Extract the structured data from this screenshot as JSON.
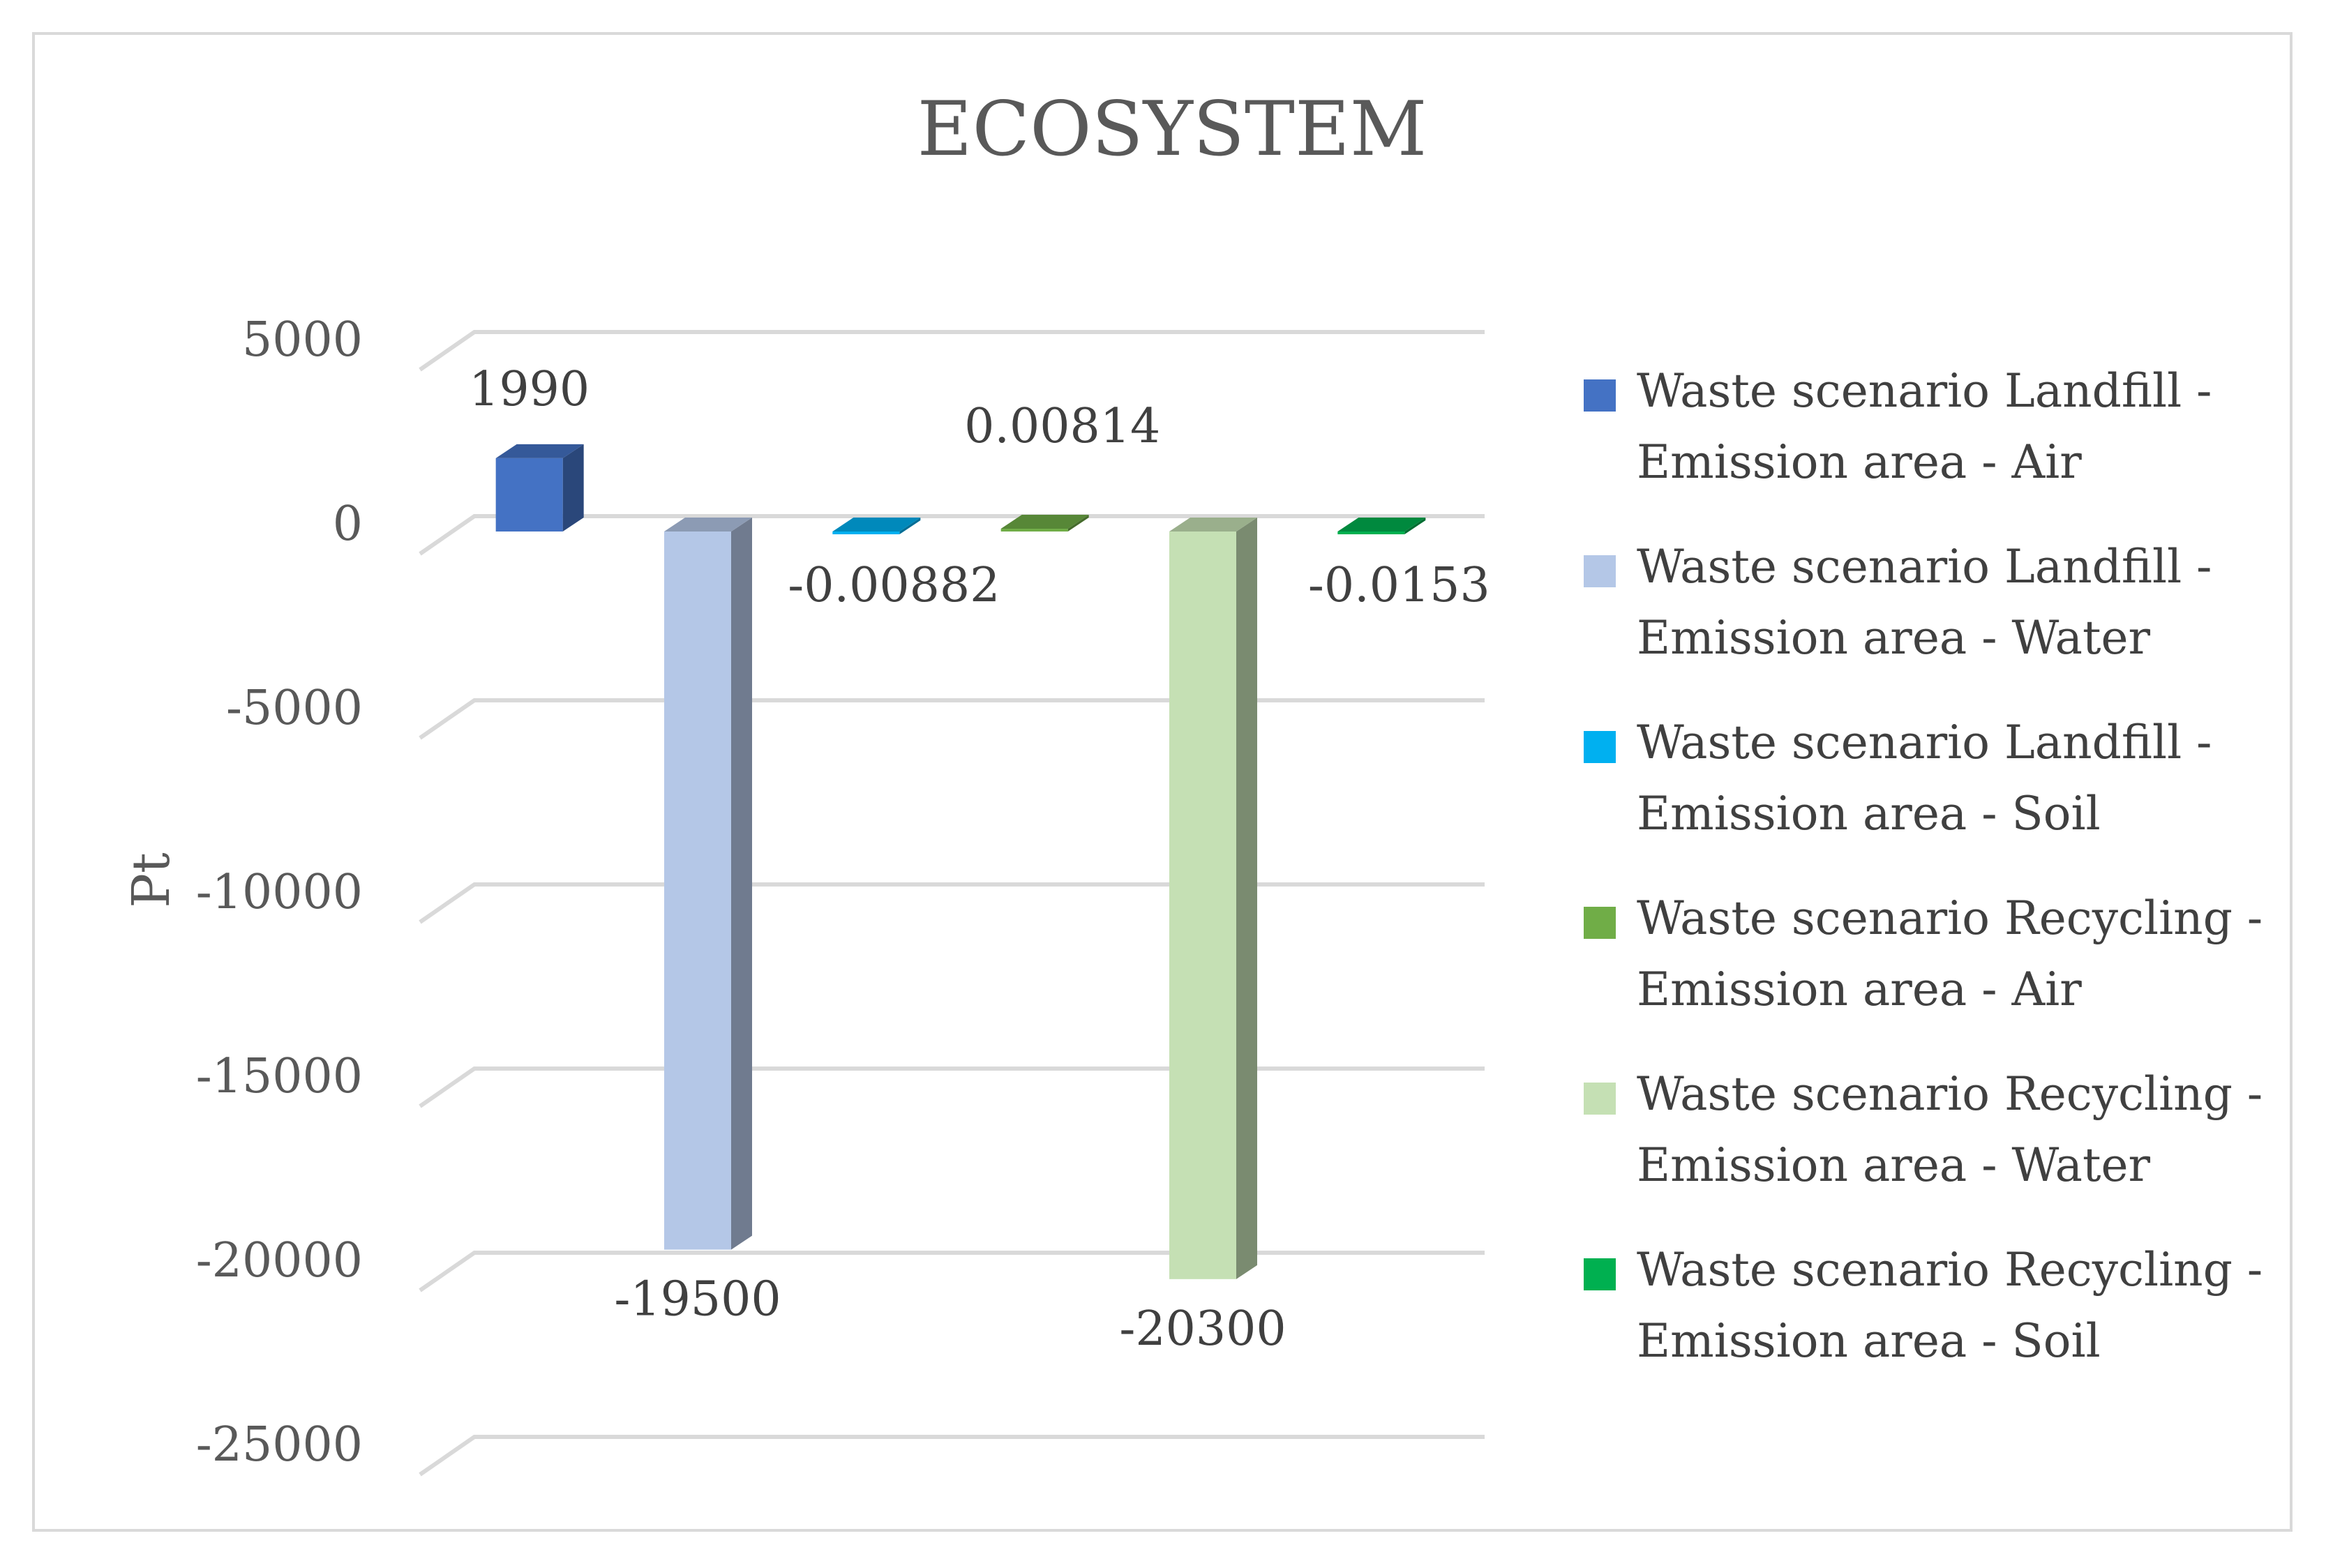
{
  "chart_data": {
    "type": "bar",
    "title": "ECOSYSTEM",
    "ylabel": "Pt",
    "xlabel": "",
    "ylim": [
      -25000,
      5000
    ],
    "yticks": [
      5000,
      0,
      -5000,
      -10000,
      -15000,
      -20000,
      -25000
    ],
    "grid": true,
    "legend_position": "right",
    "series": [
      {
        "name_lines": [
          "Waste scenario Landfill -",
          "Emission area -  Air"
        ],
        "value": 1990,
        "label": "1990",
        "color": "#4472c4"
      },
      {
        "name_lines": [
          "Waste scenario Landfill -",
          "Emission area -  Water"
        ],
        "value": -19500,
        "label": "-19500",
        "color": "#b4c7e7"
      },
      {
        "name_lines": [
          "Waste scenario Landfill -",
          "Emission area -  Soil"
        ],
        "value": -0.00882,
        "label": "-0.00882",
        "color": "#00b0f0"
      },
      {
        "name_lines": [
          "Waste scenario Recycling -",
          "Emission area -  Air"
        ],
        "value": 0.00814,
        "label": "0.00814",
        "color": "#70ad47"
      },
      {
        "name_lines": [
          "Waste scenario Recycling -",
          "Emission area -  Water"
        ],
        "value": -20300,
        "label": "-20300",
        "color": "#c5e0b4"
      },
      {
        "name_lines": [
          "Waste scenario Recycling -",
          "Emission area -  Soil"
        ],
        "value": -0.0153,
        "label": "-0.0153",
        "color": "#00b050"
      }
    ]
  }
}
